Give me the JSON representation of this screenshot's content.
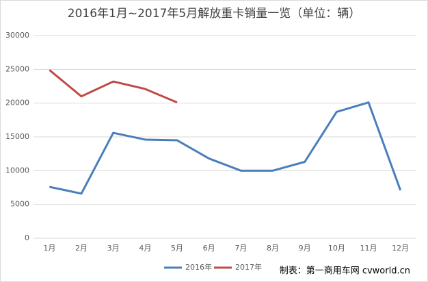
{
  "chart_data": {
    "type": "line",
    "title": "2016年1月~2017年5月解放重卡销量一览（单位：辆）",
    "categories": [
      "1月",
      "2月",
      "3月",
      "4月",
      "5月",
      "6月",
      "7月",
      "8月",
      "9月",
      "10月",
      "11月",
      "12月"
    ],
    "series": [
      {
        "name": "2016年",
        "color": "#4a7ebb",
        "values": [
          7600,
          6600,
          15600,
          14600,
          14500,
          11800,
          10000,
          10000,
          11300,
          18700,
          20100,
          7100
        ]
      },
      {
        "name": "2017年",
        "color": "#be4b48",
        "values": [
          24900,
          21000,
          23200,
          22100,
          20100,
          null,
          null,
          null,
          null,
          null,
          null,
          null
        ]
      }
    ],
    "ylim": [
      0,
      30000
    ],
    "yticks": [
      0,
      5000,
      10000,
      15000,
      20000,
      25000,
      30000
    ],
    "grid": true,
    "legend": "bottom",
    "credit": "制表：第一商用车网 cvworld.cn"
  }
}
